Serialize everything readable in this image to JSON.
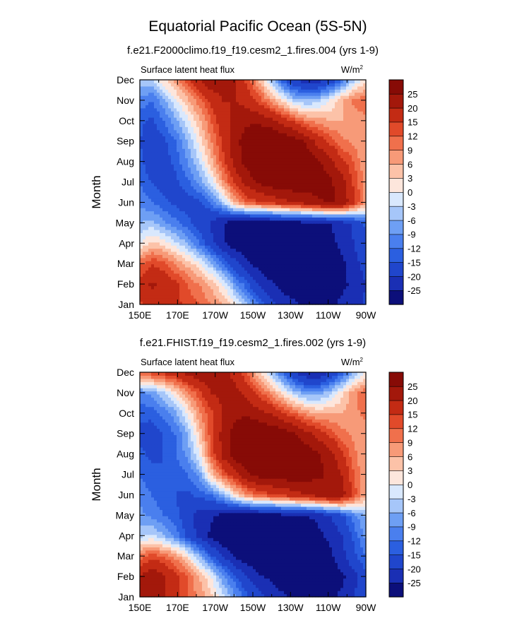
{
  "title": "Equatorial Pacific Ocean (5S-5N)",
  "chart_data": [
    {
      "type": "heatmap",
      "subtitle": "f.e21.F2000climo.f19_f19.cesm2_1.fires.004 (yrs 1-9)",
      "left_label": "Surface latent heat flux",
      "units": "W/m",
      "units_superscript": "2",
      "ylabel": "Month",
      "x_ticks": [
        "150E",
        "170E",
        "170W",
        "150W",
        "130W",
        "110W",
        "90W"
      ],
      "x_values": [
        150,
        170,
        190,
        210,
        230,
        250,
        270
      ],
      "xlim": [
        150,
        270
      ],
      "y_ticks": [
        "Jan",
        "Feb",
        "Mar",
        "Apr",
        "May",
        "Jun",
        "Jul",
        "Aug",
        "Sep",
        "Oct",
        "Nov",
        "Dec"
      ],
      "colorbar_labels": [
        "25",
        "20",
        "15",
        "12",
        "9",
        "6",
        "3",
        "0",
        "-3",
        "-6",
        "-9",
        "-12",
        "-15",
        "-20",
        "-25"
      ],
      "grid": [
        [
          14,
          17,
          18,
          16,
          14,
          12,
          9,
          6,
          2,
          -6,
          -12,
          -18,
          -22,
          -24,
          -26,
          -27,
          -26,
          -24,
          -22,
          -19
        ],
        [
          17,
          21,
          19,
          16,
          12,
          9,
          5,
          0,
          -8,
          -14,
          -20,
          -24,
          -27,
          -28,
          -29,
          -29,
          -28,
          -26,
          -24,
          -20
        ],
        [
          11,
          15,
          13,
          9,
          5,
          1,
          -5,
          -12,
          -18,
          -24,
          -27,
          -30,
          -30,
          -31,
          -30,
          -30,
          -28,
          -26,
          -22,
          -18
        ],
        [
          0,
          4,
          2,
          -2,
          -6,
          -12,
          -18,
          -24,
          -28,
          -30,
          -31,
          -31,
          -30,
          -30,
          -29,
          -28,
          -26,
          -24,
          -20,
          -16
        ],
        [
          -6,
          -5,
          -8,
          -11,
          -14,
          -17,
          -21,
          -25,
          -28,
          -30,
          -30,
          -29,
          -28,
          -28,
          -27,
          -26,
          -25,
          -23,
          -19,
          -14
        ],
        [
          -10,
          -12,
          -14,
          -16,
          -17,
          -16,
          -12,
          -4,
          6,
          12,
          14,
          16,
          18,
          20,
          22,
          24,
          26,
          24,
          16,
          8
        ],
        [
          -12,
          -15,
          -17,
          -16,
          -13,
          -8,
          -2,
          8,
          16,
          22,
          26,
          28,
          29,
          29,
          28,
          28,
          26,
          22,
          14,
          8
        ],
        [
          -14,
          -18,
          -17,
          -14,
          -9,
          -3,
          5,
          14,
          22,
          27,
          30,
          31,
          31,
          30,
          29,
          26,
          22,
          16,
          12,
          6
        ],
        [
          -15,
          -18,
          -16,
          -12,
          -6,
          1,
          9,
          16,
          23,
          28,
          30,
          31,
          30,
          28,
          24,
          18,
          14,
          10,
          8,
          6
        ],
        [
          -14,
          -16,
          -12,
          -7,
          -1,
          5,
          12,
          18,
          22,
          24,
          24,
          22,
          18,
          14,
          10,
          8,
          6,
          6,
          6,
          8
        ],
        [
          -10,
          -12,
          -7,
          -1,
          5,
          11,
          16,
          20,
          20,
          18,
          14,
          8,
          2,
          -4,
          -6,
          -4,
          0,
          6,
          10,
          12
        ],
        [
          -4,
          -4,
          2,
          8,
          14,
          20,
          24,
          24,
          20,
          14,
          6,
          -4,
          -14,
          -20,
          -22,
          -22,
          -18,
          -12,
          -4,
          2
        ]
      ]
    },
    {
      "type": "heatmap",
      "subtitle": "f.e21.FHIST.f19_f19.cesm2_1.fires.002 (yrs 1-9)",
      "left_label": "Surface latent heat flux",
      "units": "W/m",
      "units_superscript": "2",
      "ylabel": "Month",
      "x_ticks": [
        "150E",
        "170E",
        "170W",
        "150W",
        "130W",
        "110W",
        "90W"
      ],
      "x_values": [
        150,
        170,
        190,
        210,
        230,
        250,
        270
      ],
      "xlim": [
        150,
        270
      ],
      "y_ticks": [
        "Jan",
        "Feb",
        "Mar",
        "Apr",
        "May",
        "Jun",
        "Jul",
        "Aug",
        "Sep",
        "Oct",
        "Nov",
        "Dec"
      ],
      "colorbar_labels": [
        "25",
        "20",
        "15",
        "12",
        "9",
        "6",
        "3",
        "0",
        "-3",
        "-6",
        "-9",
        "-12",
        "-15",
        "-20",
        "-25"
      ],
      "grid": [
        [
          20,
          22,
          20,
          16,
          12,
          8,
          4,
          -2,
          -8,
          -14,
          -18,
          -22,
          -24,
          -26,
          -28,
          -28,
          -26,
          -24,
          -20,
          -16
        ],
        [
          21,
          24,
          21,
          17,
          12,
          6,
          0,
          -8,
          -14,
          -20,
          -24,
          -26,
          -28,
          -29,
          -30,
          -30,
          -28,
          -26,
          -22,
          -16
        ],
        [
          10,
          14,
          12,
          8,
          2,
          -6,
          -14,
          -20,
          -26,
          -28,
          -30,
          -30,
          -30,
          -30,
          -29,
          -28,
          -26,
          -22,
          -16,
          -12
        ],
        [
          -4,
          -2,
          -6,
          -10,
          -16,
          -22,
          -26,
          -30,
          -31,
          -31,
          -31,
          -30,
          -30,
          -29,
          -28,
          -26,
          -24,
          -20,
          -14,
          -8
        ],
        [
          -8,
          -10,
          -12,
          -14,
          -18,
          -22,
          -24,
          -27,
          -28,
          -28,
          -28,
          -28,
          -27,
          -26,
          -25,
          -24,
          -20,
          -16,
          -10,
          -6
        ],
        [
          -10,
          -12,
          -14,
          -15,
          -16,
          -14,
          -12,
          -6,
          2,
          8,
          12,
          14,
          16,
          18,
          20,
          22,
          24,
          22,
          14,
          6
        ],
        [
          -12,
          -14,
          -15,
          -14,
          -12,
          -8,
          4,
          12,
          18,
          24,
          27,
          28,
          28,
          28,
          27,
          26,
          24,
          20,
          12,
          6
        ],
        [
          -14,
          -16,
          -15,
          -12,
          -8,
          0,
          12,
          22,
          28,
          30,
          31,
          30,
          30,
          29,
          28,
          26,
          22,
          16,
          10,
          6
        ],
        [
          -16,
          -17,
          -15,
          -12,
          -6,
          4,
          14,
          22,
          27,
          30,
          30,
          29,
          28,
          26,
          22,
          18,
          14,
          10,
          8,
          6
        ],
        [
          -14,
          -14,
          -11,
          -7,
          0,
          8,
          14,
          20,
          24,
          24,
          22,
          20,
          16,
          12,
          8,
          6,
          6,
          6,
          8,
          10
        ],
        [
          -10,
          -8,
          -4,
          2,
          8,
          14,
          20,
          22,
          22,
          18,
          14,
          8,
          2,
          -4,
          -8,
          -8,
          -4,
          2,
          8,
          12
        ],
        [
          12,
          14,
          16,
          18,
          22,
          24,
          24,
          22,
          18,
          12,
          4,
          -4,
          -12,
          -20,
          -24,
          -24,
          -20,
          -14,
          -6,
          0
        ]
      ]
    }
  ]
}
